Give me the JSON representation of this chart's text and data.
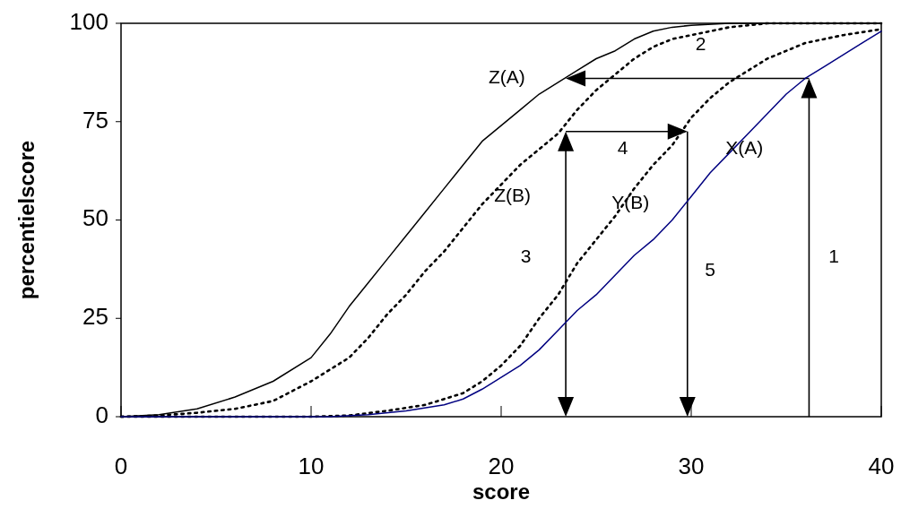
{
  "chart_data": {
    "type": "line",
    "xlabel": "score",
    "ylabel": "percentielscore",
    "xlim": [
      0,
      40
    ],
    "ylim": [
      0,
      100
    ],
    "xticks": [
      0,
      10,
      20,
      30,
      40
    ],
    "yticks": [
      0,
      25,
      50,
      75,
      100
    ],
    "grid": false,
    "marker": "none",
    "series": [
      {
        "name": "Z(A)",
        "color": "#000000",
        "line_style": "solid",
        "x": [
          0,
          2,
          4,
          6,
          8,
          10,
          11,
          12,
          13,
          14,
          15,
          16,
          17,
          18,
          19,
          20,
          21,
          22,
          23,
          24,
          25,
          26,
          27,
          28,
          29,
          30,
          32,
          40
        ],
        "values": [
          0,
          0.5,
          2,
          5,
          9,
          15,
          21,
          28,
          34,
          40,
          46,
          52,
          58,
          64,
          70,
          74,
          78,
          82,
          85,
          88,
          91,
          93,
          96,
          98,
          99,
          99.5,
          100,
          100
        ]
      },
      {
        "name": "Z(B)",
        "color": "#000000",
        "line_style": "dotted",
        "x": [
          0,
          2,
          4,
          6,
          8,
          10,
          12,
          13,
          14,
          15,
          16,
          17,
          18,
          19,
          20,
          21,
          22,
          23,
          24,
          25,
          26,
          27,
          28,
          29,
          30,
          32,
          34,
          40
        ],
        "values": [
          0,
          0.3,
          1,
          2,
          4,
          9,
          15,
          20,
          26,
          31,
          37,
          42,
          48,
          54,
          59,
          64,
          68,
          72,
          78,
          83,
          87,
          91,
          94,
          96,
          97,
          99,
          100,
          100
        ]
      },
      {
        "name": "Y(B)",
        "color": "#000000",
        "line_style": "dotted",
        "x": [
          0,
          10,
          12,
          14,
          16,
          18,
          19,
          20,
          21,
          22,
          23,
          24,
          25,
          26,
          27,
          28,
          29,
          30,
          31,
          32,
          33,
          34,
          36,
          38,
          40
        ],
        "values": [
          0,
          0,
          0.3,
          1.5,
          3,
          6,
          9,
          13,
          18,
          25,
          31,
          39,
          45,
          51,
          58,
          64,
          69,
          76,
          81,
          85,
          88,
          91,
          95,
          97,
          98.5
        ]
      },
      {
        "name": "X(A)",
        "color": "#000080",
        "line_style": "solid",
        "x": [
          0,
          11,
          13,
          15,
          17,
          18,
          19,
          20,
          21,
          22,
          23,
          24,
          25,
          26,
          27,
          28,
          29,
          30,
          31,
          32,
          33,
          34,
          35,
          36,
          37,
          38,
          39,
          40
        ],
        "values": [
          0,
          0,
          0.5,
          1.5,
          3,
          4.5,
          7,
          10,
          13,
          17,
          22,
          27,
          31,
          36,
          41,
          45,
          50,
          56,
          62,
          67,
          72,
          77,
          82,
          86,
          89,
          92,
          95,
          98
        ]
      }
    ],
    "annotations": [
      "1",
      "2",
      "3",
      "4",
      "5"
    ]
  }
}
